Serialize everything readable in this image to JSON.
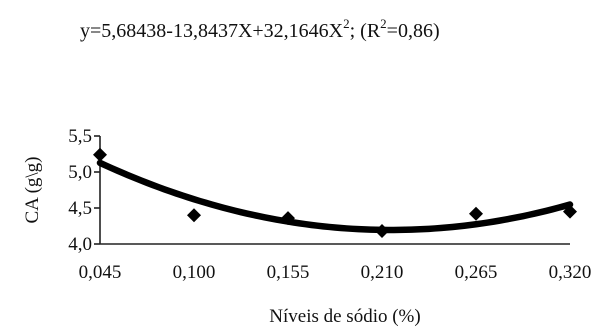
{
  "chart_data": {
    "type": "scatter",
    "equation": {
      "prefix": "y=5,68438-13,8437X+32,1646X",
      "exponent": "2",
      "middle": "; (R",
      "r2_exponent": "2",
      "suffix": "=0,86)"
    },
    "xlabel": "Níveis de sódio (%)",
    "ylabel": "CA (g\\g)",
    "x_ticks": [
      "0,045",
      "0,100",
      "0,155",
      "0,210",
      "0,265",
      "0,320"
    ],
    "y_ticks": [
      "4,0",
      "4,5",
      "5,0",
      "5,5"
    ],
    "xlim": [
      0.045,
      0.32
    ],
    "ylim": [
      4.0,
      5.5
    ],
    "series": [
      {
        "points": [
          {
            "x": 0.045,
            "y": 5.24
          },
          {
            "x": 0.1,
            "y": 4.4
          },
          {
            "x": 0.155,
            "y": 4.36
          },
          {
            "x": 0.21,
            "y": 4.18
          },
          {
            "x": 0.265,
            "y": 4.42
          },
          {
            "x": 0.32,
            "y": 4.45
          }
        ]
      }
    ],
    "fit": {
      "a": 5.68438,
      "b": -13.8437,
      "c": 32.1646
    },
    "grid": false,
    "colors": {
      "marker": "#000000",
      "line": "#000000",
      "axis": "#222222"
    }
  }
}
